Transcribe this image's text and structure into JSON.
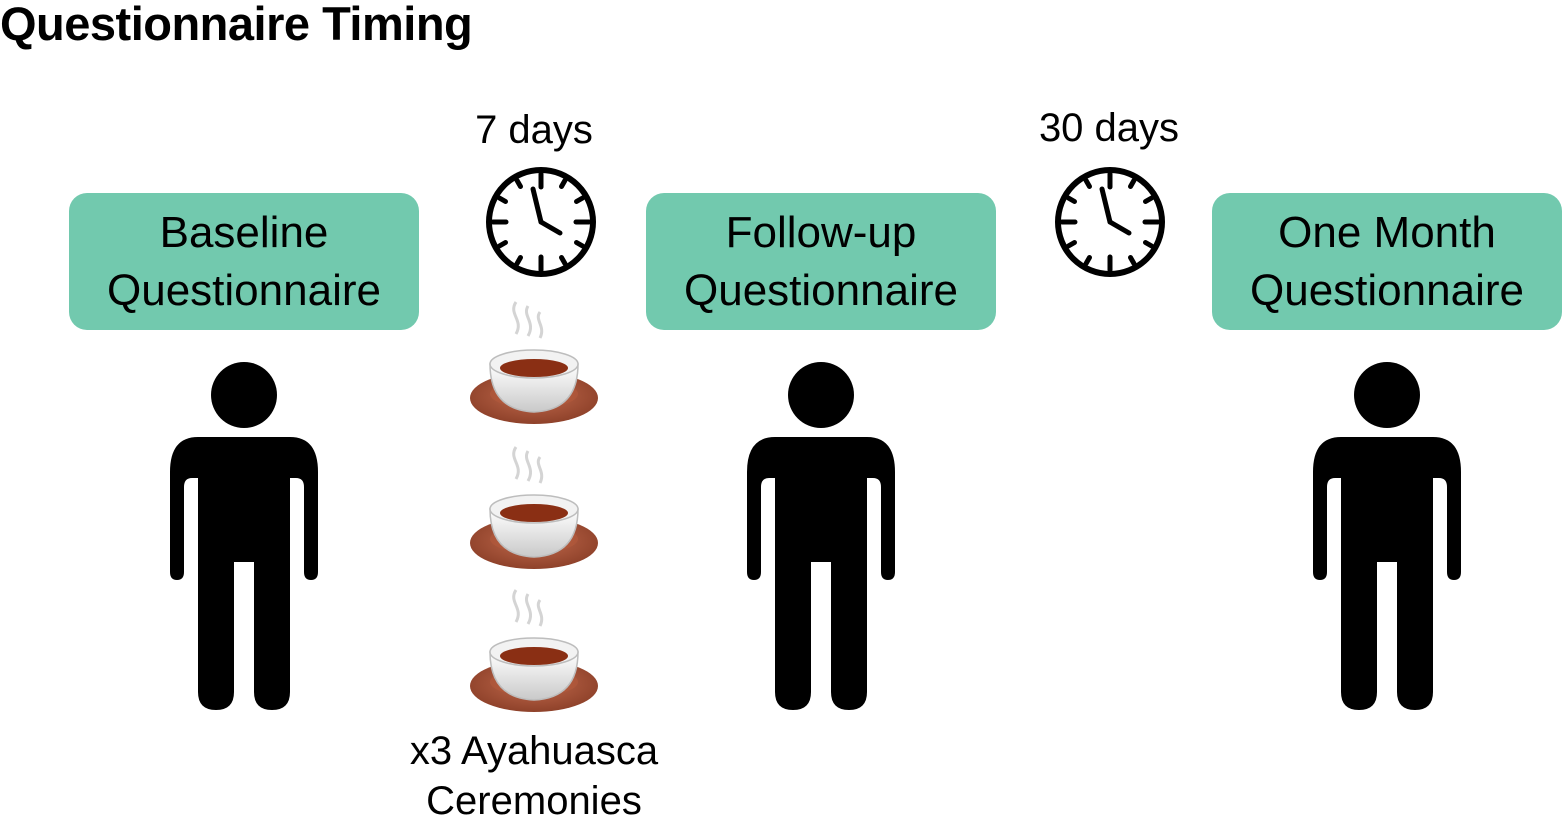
{
  "title": "Questionnaire Timing",
  "stages": [
    {
      "line1": "Baseline",
      "line2": "Questionnaire"
    },
    {
      "line1": "Follow-up",
      "line2": "Questionnaire"
    },
    {
      "line1": "One Month",
      "line2": "Questionnaire"
    }
  ],
  "intervals": [
    {
      "label": "7 days",
      "icon": "clock-icon"
    },
    {
      "label": "30 days",
      "icon": "clock-icon"
    }
  ],
  "ceremonies": {
    "count_cups": 3,
    "icon": "tea-cup-icon",
    "line1": "x3 Ayahuasca",
    "line2": "Ceremonies"
  },
  "colors": {
    "box_fill": "#72c9ae",
    "person": "#000000",
    "saucer": "#a0543c",
    "tea": "#8a2f14"
  }
}
